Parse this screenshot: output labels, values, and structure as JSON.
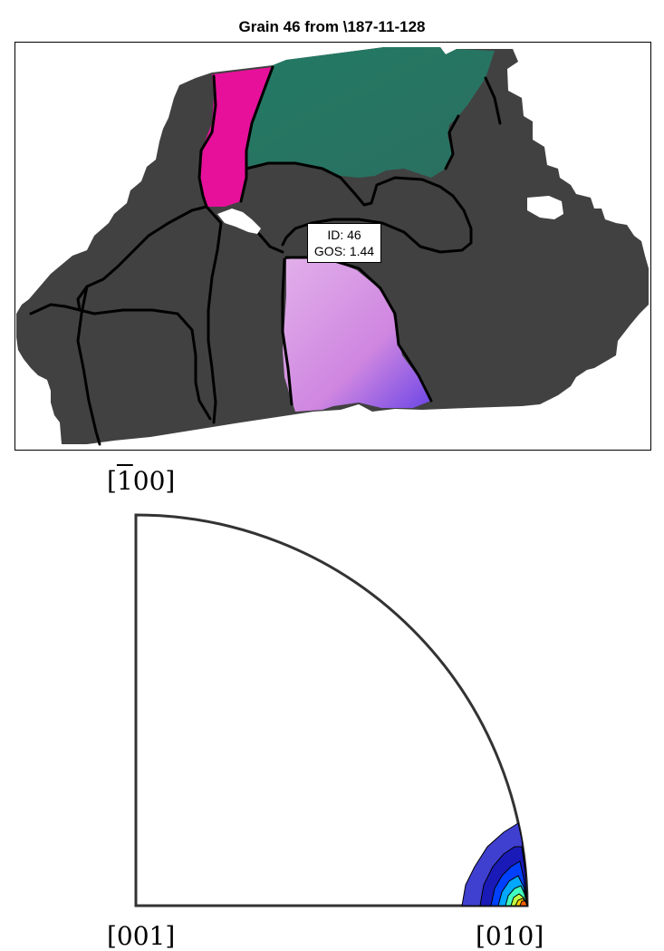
{
  "figure": {
    "title": "Grain 46 from \\187-11-128",
    "grain_label": {
      "line1": "ID: 46",
      "line2": "GOS: 1.44"
    }
  },
  "pole_figure": {
    "label_top": "[100]",
    "label_top_prefix": "[",
    "label_top_overbar_digit": "1",
    "label_top_suffix": "00]",
    "label_bottom_left": "[001]",
    "label_bottom_right": "[010]",
    "contour_colors": [
      "#3f3fd0",
      "#1a1ab8",
      "#0040ff",
      "#00a8ff",
      "#40ffc0",
      "#c0ff40",
      "#ffd000",
      "#ff6000"
    ]
  },
  "colors": {
    "matrix": "#414141",
    "grain_pink": "#e6109a",
    "grain_teal": "#237a66",
    "grain_lilac": "#d08be6",
    "grain_blue": "#6a44e6",
    "boundary": "#000000"
  }
}
